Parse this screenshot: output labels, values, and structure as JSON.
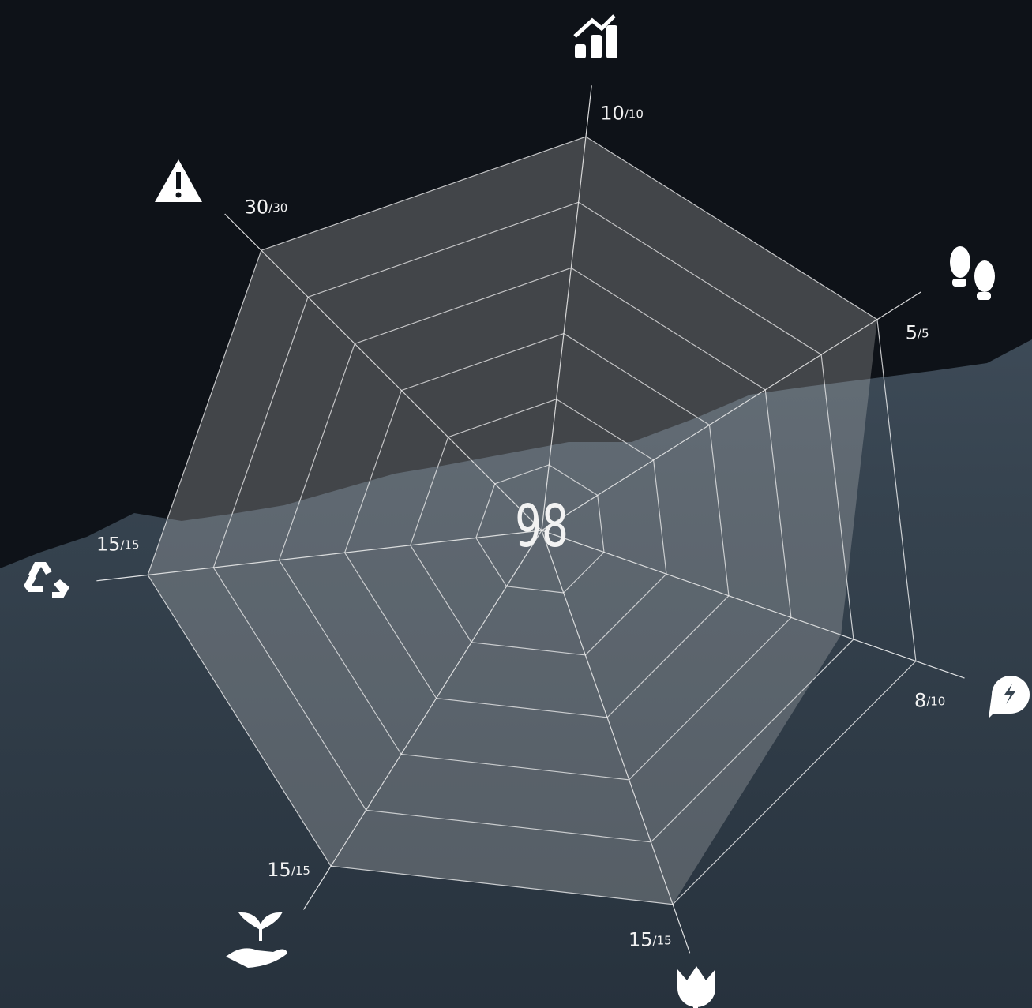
{
  "chart_data": {
    "type": "radar",
    "values": [
      10,
      5,
      8,
      15,
      15,
      15,
      30
    ],
    "maxima": [
      {
        "value": 10,
        "label": "/10"
      },
      {
        "value": 5,
        "label": "/5"
      },
      {
        "value": 10,
        "label": "/10"
      },
      {
        "value": 15,
        "label": "/15"
      },
      {
        "value": 15,
        "label": "/15"
      },
      {
        "value": 15,
        "label": "/15"
      },
      {
        "value": 30,
        "label": "/30"
      }
    ],
    "total": 98,
    "color": "#c8c8c8"
  }
}
